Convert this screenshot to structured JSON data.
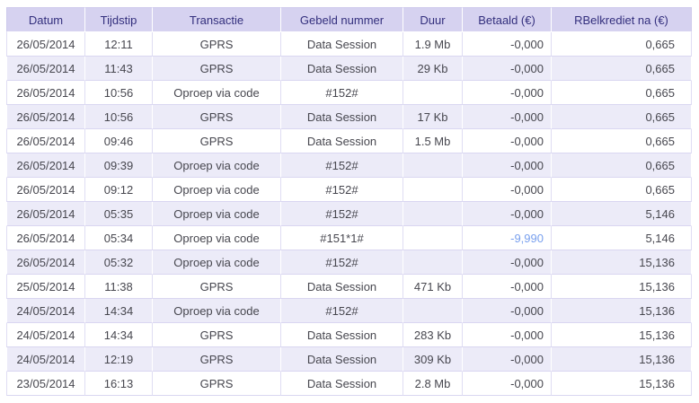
{
  "colors": {
    "header_bg": "#d6d2f0",
    "header_text": "#332f7d",
    "row_alt_bg": "#ecebf8",
    "body_text": "#47474f",
    "grid_line": "#d9d6f1",
    "negative_amount_blue": "#79a0ee"
  },
  "table": {
    "columns": [
      {
        "key": "datum",
        "label": "Datum"
      },
      {
        "key": "tijdstip",
        "label": "Tijdstip"
      },
      {
        "key": "transactie",
        "label": "Transactie"
      },
      {
        "key": "gebeld_nummer",
        "label": "Gebeld nummer"
      },
      {
        "key": "duur",
        "label": "Duur"
      },
      {
        "key": "betaald",
        "label": "Betaald (€)"
      },
      {
        "key": "krediet",
        "label": "RBelkrediet na (€)"
      }
    ],
    "rows": [
      {
        "datum": "26/05/2014",
        "tijdstip": "12:11",
        "transactie": "GPRS",
        "gebeld_nummer": "Data Session",
        "duur": "1.9 Mb",
        "betaald": "-0,000",
        "krediet": "0,665"
      },
      {
        "datum": "26/05/2014",
        "tijdstip": "11:43",
        "transactie": "GPRS",
        "gebeld_nummer": "Data Session",
        "duur": "29 Kb",
        "betaald": "-0,000",
        "krediet": "0,665"
      },
      {
        "datum": "26/05/2014",
        "tijdstip": "10:56",
        "transactie": "Oproep via code",
        "gebeld_nummer": "#152#",
        "duur": "",
        "betaald": "-0,000",
        "krediet": "0,665"
      },
      {
        "datum": "26/05/2014",
        "tijdstip": "10:56",
        "transactie": "GPRS",
        "gebeld_nummer": "Data Session",
        "duur": "17 Kb",
        "betaald": "-0,000",
        "krediet": "0,665"
      },
      {
        "datum": "26/05/2014",
        "tijdstip": "09:46",
        "transactie": "GPRS",
        "gebeld_nummer": "Data Session",
        "duur": "1.5 Mb",
        "betaald": "-0,000",
        "krediet": "0,665"
      },
      {
        "datum": "26/05/2014",
        "tijdstip": "09:39",
        "transactie": "Oproep via code",
        "gebeld_nummer": "#152#",
        "duur": "",
        "betaald": "-0,000",
        "krediet": "0,665"
      },
      {
        "datum": "26/05/2014",
        "tijdstip": "09:12",
        "transactie": "Oproep via code",
        "gebeld_nummer": "#152#",
        "duur": "",
        "betaald": "-0,000",
        "krediet": "0,665"
      },
      {
        "datum": "26/05/2014",
        "tijdstip": "05:35",
        "transactie": "Oproep via code",
        "gebeld_nummer": "#152#",
        "duur": "",
        "betaald": "-0,000",
        "krediet": "5,146"
      },
      {
        "datum": "26/05/2014",
        "tijdstip": "05:34",
        "transactie": "Oproep via code",
        "gebeld_nummer": "#151*1#",
        "duur": "",
        "betaald": "-9,990",
        "krediet": "5,146",
        "betaald_blue": true
      },
      {
        "datum": "26/05/2014",
        "tijdstip": "05:32",
        "transactie": "Oproep via code",
        "gebeld_nummer": "#152#",
        "duur": "",
        "betaald": "-0,000",
        "krediet": "15,136"
      },
      {
        "datum": "25/05/2014",
        "tijdstip": "11:38",
        "transactie": "GPRS",
        "gebeld_nummer": "Data Session",
        "duur": "471 Kb",
        "betaald": "-0,000",
        "krediet": "15,136"
      },
      {
        "datum": "24/05/2014",
        "tijdstip": "14:34",
        "transactie": "Oproep via code",
        "gebeld_nummer": "#152#",
        "duur": "",
        "betaald": "-0,000",
        "krediet": "15,136"
      },
      {
        "datum": "24/05/2014",
        "tijdstip": "14:34",
        "transactie": "GPRS",
        "gebeld_nummer": "Data Session",
        "duur": "283 Kb",
        "betaald": "-0,000",
        "krediet": "15,136"
      },
      {
        "datum": "24/05/2014",
        "tijdstip": "12:19",
        "transactie": "GPRS",
        "gebeld_nummer": "Data Session",
        "duur": "309 Kb",
        "betaald": "-0,000",
        "krediet": "15,136"
      },
      {
        "datum": "23/05/2014",
        "tijdstip": "16:13",
        "transactie": "GPRS",
        "gebeld_nummer": "Data Session",
        "duur": "2.8 Mb",
        "betaald": "-0,000",
        "krediet": "15,136"
      }
    ]
  }
}
